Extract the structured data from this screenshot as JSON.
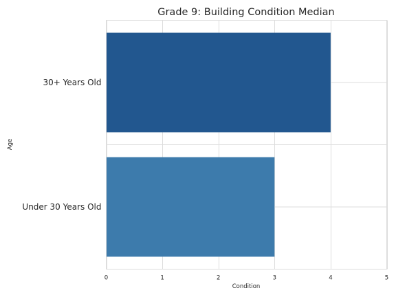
{
  "chart_data": {
    "type": "bar",
    "orientation": "horizontal",
    "title": "Grade 9: Building Condition Median",
    "xlabel": "Condition",
    "ylabel": "Age",
    "categories": [
      "30+ Years Old",
      "Under 30 Years Old"
    ],
    "values": [
      4,
      3
    ],
    "colors": [
      "#22578f",
      "#3d7bac"
    ],
    "xlim": [
      0,
      5
    ],
    "xticks": [
      0,
      1,
      2,
      3,
      4,
      5
    ],
    "grid": true,
    "legend": "none"
  }
}
